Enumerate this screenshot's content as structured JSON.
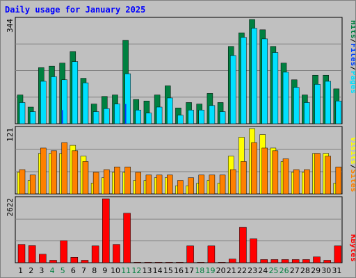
{
  "title": "Daily usage for January 2025",
  "colors": {
    "hits": "#008040",
    "files": "#0040ff",
    "pages": "#00e0ff",
    "visits": "#ffff00",
    "sites": "#ff8000",
    "kbytes": "#ff0000",
    "weekend_label": "#008040",
    "weekday_label": "#000000",
    "background": "#c0c0c0"
  },
  "chart_data": [
    {
      "type": "bar",
      "panel": "top",
      "max_label": "344",
      "ylim": [
        0,
        344
      ],
      "legend": [
        "Pages",
        "/",
        "Files",
        "/",
        "Hits"
      ],
      "categories": [
        "1",
        "2",
        "3",
        "4",
        "5",
        "6",
        "7",
        "8",
        "9",
        "10",
        "11",
        "12",
        "13",
        "14",
        "15",
        "16",
        "17",
        "18",
        "19",
        "20",
        "21",
        "22",
        "23",
        "24",
        "25",
        "26",
        "27",
        "28",
        "29",
        "30",
        "31"
      ],
      "weekend": [
        4,
        5,
        11,
        12,
        18,
        19,
        25,
        26
      ],
      "series": [
        {
          "name": "Hits",
          "values": [
            95,
            55,
            185,
            190,
            200,
            238,
            150,
            65,
            90,
            95,
            275,
            80,
            75,
            95,
            125,
            52,
            70,
            65,
            100,
            70,
            255,
            300,
            344,
            310,
            255,
            200,
            145,
            95,
            160,
            160,
            115
          ]
        },
        {
          "name": "Files",
          "values": [
            0,
            0,
            0,
            0,
            45,
            0,
            0,
            0,
            0,
            0,
            65,
            0,
            0,
            0,
            0,
            0,
            0,
            0,
            0,
            0,
            0,
            0,
            0,
            0,
            0,
            0,
            0,
            0,
            0,
            0,
            0
          ]
        },
        {
          "name": "Pages",
          "values": [
            70,
            40,
            140,
            155,
            145,
            205,
            135,
            40,
            50,
            65,
            165,
            45,
            35,
            55,
            85,
            28,
            45,
            45,
            60,
            40,
            225,
            285,
            315,
            280,
            235,
            170,
            120,
            70,
            130,
            140,
            75
          ]
        }
      ]
    },
    {
      "type": "bar",
      "panel": "middle",
      "max_label": "121",
      "ylim": [
        0,
        121
      ],
      "legend": [
        "Sites",
        "/",
        "Visits"
      ],
      "categories": [
        "1",
        "2",
        "3",
        "4",
        "5",
        "6",
        "7",
        "8",
        "9",
        "10",
        "11",
        "12",
        "13",
        "14",
        "15",
        "16",
        "17",
        "18",
        "19",
        "20",
        "21",
        "22",
        "23",
        "24",
        "25",
        "26",
        "27",
        "28",
        "29",
        "30",
        "31"
      ],
      "series": [
        {
          "name": "Visits",
          "values": [
            40,
            25,
            75,
            75,
            75,
            90,
            70,
            20,
            30,
            40,
            40,
            25,
            25,
            30,
            30,
            15,
            15,
            20,
            25,
            20,
            70,
            105,
            121,
            110,
            85,
            60,
            40,
            40,
            75,
            75,
            20
          ]
        },
        {
          "name": "Sites",
          "values": [
            45,
            35,
            85,
            80,
            95,
            80,
            60,
            40,
            45,
            50,
            50,
            40,
            35,
            35,
            35,
            25,
            30,
            35,
            35,
            35,
            45,
            60,
            95,
            85,
            80,
            65,
            45,
            45,
            75,
            70,
            50
          ]
        }
      ]
    },
    {
      "type": "bar",
      "panel": "bottom",
      "max_label": "2622",
      "ylim": [
        0,
        2622
      ],
      "legend": [
        "KBytes"
      ],
      "categories": [
        "1",
        "2",
        "3",
        "4",
        "5",
        "6",
        "7",
        "8",
        "9",
        "10",
        "11",
        "12",
        "13",
        "14",
        "15",
        "16",
        "17",
        "18",
        "19",
        "20",
        "21",
        "22",
        "23",
        "24",
        "25",
        "26",
        "27",
        "28",
        "29",
        "30",
        "31"
      ],
      "series": [
        {
          "name": "KBytes",
          "values": [
            750,
            700,
            350,
            100,
            900,
            220,
            100,
            690,
            2622,
            750,
            2030,
            20,
            20,
            20,
            20,
            20,
            690,
            20,
            690,
            20,
            150,
            1450,
            980,
            130,
            130,
            130,
            130,
            130,
            240,
            100,
            690
          ]
        }
      ]
    }
  ]
}
